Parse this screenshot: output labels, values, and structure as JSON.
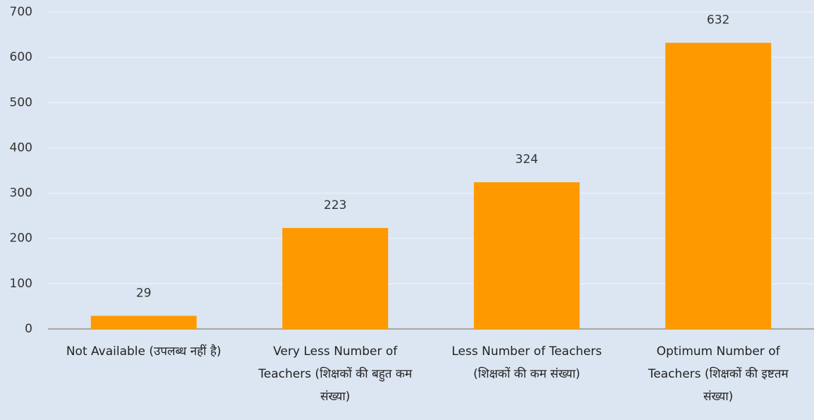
{
  "chart_data": {
    "type": "bar",
    "categories": [
      "Not Available (उपलब्ध नहीं है)",
      "Very Less Number of Teachers (शिक्षकों की बहुत कम संख्या)",
      "Less Number of Teachers (शिक्षकों की कम संख्या)",
      "Optimum Number of Teachers (शिक्षकों की इष्टतम संख्या)"
    ],
    "values": [
      29,
      223,
      324,
      632
    ],
    "color": "#ff9900",
    "ylim": [
      0,
      700
    ],
    "yticks": [
      0,
      100,
      200,
      300,
      400,
      500,
      600,
      700
    ],
    "grid": true
  }
}
